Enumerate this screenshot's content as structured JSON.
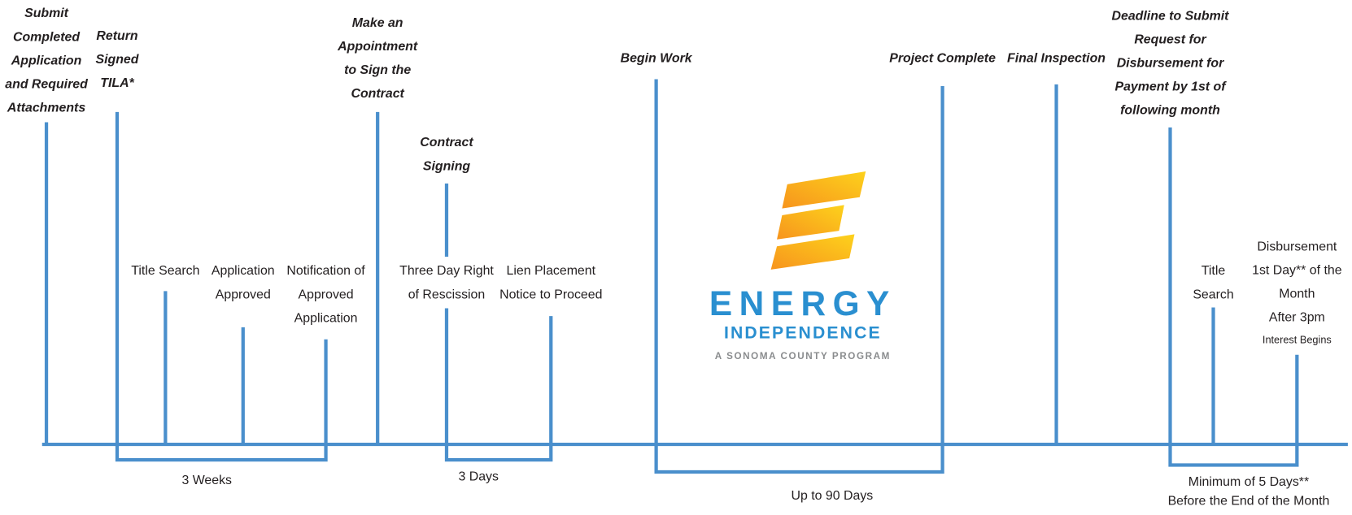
{
  "milestones": [
    {
      "lines": [
        "Submit",
        "Completed",
        "Application",
        "and Required",
        "Attachments"
      ]
    },
    {
      "lines": [
        "Return",
        "Signed",
        "TILA*"
      ]
    },
    {
      "lines": [
        "Make an",
        "Appointment",
        "to Sign the",
        "Contract"
      ]
    },
    {
      "lines": [
        "Contract",
        "Signing"
      ]
    },
    {
      "lines": [
        "Begin Work"
      ]
    },
    {
      "lines": [
        "Project Complete"
      ]
    },
    {
      "lines": [
        "Final Inspection"
      ]
    },
    {
      "lines": [
        "Deadline to Submit",
        "Request for",
        "Disbursement for",
        "Payment by 1st of",
        "following month"
      ]
    }
  ],
  "events": [
    {
      "lines": [
        "Title Search"
      ]
    },
    {
      "lines": [
        "Application",
        "Approved"
      ]
    },
    {
      "lines": [
        "Notification of",
        "Approved",
        "Application"
      ]
    },
    {
      "lines": [
        "Three Day Right",
        "of Rescission"
      ]
    },
    {
      "lines": [
        "Lien Placement",
        "Notice to Proceed"
      ]
    },
    {
      "lines": [
        "Title",
        "Search"
      ]
    },
    {
      "lines": [
        "Disbursement",
        "1st Day** of the",
        "Month",
        "After 3pm"
      ],
      "note": "Interest Begins"
    }
  ],
  "spans": [
    {
      "lines": [
        "3 Weeks"
      ]
    },
    {
      "lines": [
        "3 Days"
      ]
    },
    {
      "lines": [
        "Up to 90 Days"
      ]
    },
    {
      "lines": [
        "Minimum of 5 Days**",
        "Before the End of the Month"
      ]
    }
  ],
  "logo": {
    "name": "ENERGY",
    "subname": "INDEPENDENCE",
    "tagline": "A SONOMA COUNTY PROGRAM"
  }
}
